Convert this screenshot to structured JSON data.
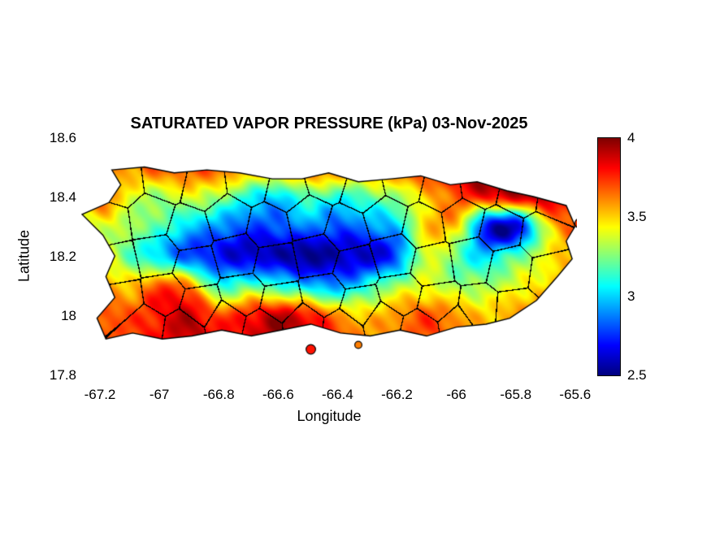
{
  "colors": {
    "background": "#ffffff",
    "text": "#000000",
    "boundary_lines": "#000000"
  },
  "chart_data": {
    "type": "heatmap",
    "title": "SATURATED VAPOR PRESSURE (kPa) 03-Nov-2025",
    "date": "03-Nov-2025",
    "units": "kPa",
    "xlabel": "Longitude",
    "ylabel": "Latitude",
    "xlim": [
      -67.263,
      -65.594
    ],
    "ylim": [
      17.8,
      18.6
    ],
    "x_ticks": [
      -67.2,
      -67,
      -66.8,
      -66.6,
      -66.4,
      -66.2,
      -66,
      -65.8,
      -65.6
    ],
    "x_tick_labels": [
      "-67.2",
      "-67",
      "-66.8",
      "-66.6",
      "-66.4",
      "-66.2",
      "-66",
      "-65.8",
      "-65.6"
    ],
    "y_ticks": [
      18.6,
      18.4,
      18.2,
      18,
      17.8
    ],
    "y_tick_labels": [
      "18.6",
      "18.4",
      "18.2",
      "18",
      "17.8"
    ],
    "colorbar": {
      "position": "right",
      "colormap": "jet",
      "min": 2.5,
      "max": 4,
      "ticks": [
        4,
        3.5,
        3,
        2.5
      ],
      "tick_labels": [
        "4",
        "3.5",
        "3",
        "2.5"
      ]
    },
    "grid": {
      "comment": "Estimated saturated vapor pressure (kPa) on a lon/lat grid; rows north to south",
      "lon_start": -67.3,
      "lon_step": 0.1,
      "lon_count": 19,
      "lat_start": 18.6,
      "lat_step": -0.1,
      "lat_count": 9,
      "values": [
        [
          3.5,
          3.6,
          3.6,
          3.7,
          3.7,
          3.7,
          3.6,
          3.6,
          3.7,
          3.7,
          3.6,
          3.7,
          3.8,
          3.9,
          4.0,
          4.0,
          3.9,
          3.8,
          3.8
        ],
        [
          3.5,
          3.6,
          3.6,
          3.7,
          3.7,
          3.7,
          3.6,
          3.6,
          3.7,
          3.7,
          3.6,
          3.7,
          3.8,
          3.9,
          4.0,
          4.0,
          3.9,
          3.8,
          3.8
        ],
        [
          3.5,
          3.7,
          3.4,
          3.3,
          3.4,
          3.3,
          3.1,
          3.0,
          3.2,
          3.1,
          3.2,
          3.3,
          3.5,
          3.7,
          3.8,
          3.9,
          3.9,
          3.8,
          3.7
        ],
        [
          3.3,
          3.4,
          3.3,
          3.2,
          3.0,
          2.9,
          2.8,
          2.8,
          2.9,
          2.8,
          2.9,
          3.0,
          3.5,
          3.5,
          2.7,
          2.6,
          3.4,
          3.7,
          3.7
        ],
        [
          3.6,
          3.5,
          3.2,
          3.0,
          2.8,
          2.7,
          2.6,
          2.6,
          2.5,
          2.6,
          2.6,
          2.8,
          3.4,
          3.2,
          3.0,
          3.2,
          3.4,
          3.6,
          3.7
        ],
        [
          3.6,
          3.6,
          3.5,
          3.7,
          3.6,
          3.1,
          3.2,
          3.1,
          3.0,
          2.9,
          3.1,
          3.3,
          3.4,
          3.3,
          3.3,
          3.4,
          3.5,
          3.7,
          3.7
        ],
        [
          3.7,
          3.7,
          3.7,
          3.8,
          3.9,
          3.7,
          3.8,
          3.9,
          3.8,
          3.6,
          3.5,
          3.6,
          3.7,
          3.6,
          3.5,
          3.6,
          3.7,
          3.8,
          3.8
        ],
        [
          3.7,
          3.7,
          3.7,
          3.8,
          3.9,
          3.8,
          3.8,
          3.9,
          3.8,
          3.7,
          3.6,
          3.6,
          3.7,
          3.6,
          3.5,
          3.6,
          3.7,
          3.8,
          3.8
        ],
        [
          3.7,
          3.7,
          3.7,
          3.8,
          3.9,
          3.8,
          3.8,
          3.9,
          3.8,
          3.7,
          3.6,
          3.6,
          3.7,
          3.6,
          3.5,
          3.6,
          3.7,
          3.8,
          3.8
        ]
      ]
    },
    "island_outline": [
      [
        -67.16,
        18.49
      ],
      [
        -67.05,
        18.5
      ],
      [
        -66.95,
        18.48
      ],
      [
        -66.84,
        18.49
      ],
      [
        -66.73,
        18.48
      ],
      [
        -66.62,
        18.46
      ],
      [
        -66.52,
        18.46
      ],
      [
        -66.43,
        18.48
      ],
      [
        -66.33,
        18.45
      ],
      [
        -66.22,
        18.46
      ],
      [
        -66.12,
        18.47
      ],
      [
        -66.02,
        18.44
      ],
      [
        -65.93,
        18.45
      ],
      [
        -65.83,
        18.42
      ],
      [
        -65.74,
        18.4
      ],
      [
        -65.63,
        18.37
      ],
      [
        -65.6,
        18.3
      ],
      [
        -65.63,
        18.25
      ],
      [
        -65.61,
        18.19
      ],
      [
        -65.66,
        18.13
      ],
      [
        -65.73,
        18.05
      ],
      [
        -65.82,
        17.99
      ],
      [
        -65.9,
        17.97
      ],
      [
        -66.0,
        17.96
      ],
      [
        -66.1,
        17.93
      ],
      [
        -66.19,
        17.95
      ],
      [
        -66.29,
        17.93
      ],
      [
        -66.39,
        17.94
      ],
      [
        -66.49,
        17.97
      ],
      [
        -66.59,
        17.95
      ],
      [
        -66.69,
        17.93
      ],
      [
        -66.79,
        17.95
      ],
      [
        -66.89,
        17.93
      ],
      [
        -66.99,
        17.92
      ],
      [
        -67.09,
        17.94
      ],
      [
        -67.18,
        17.92
      ],
      [
        -67.21,
        17.99
      ],
      [
        -67.15,
        18.06
      ],
      [
        -67.18,
        18.13
      ],
      [
        -67.15,
        18.2
      ],
      [
        -67.19,
        18.27
      ],
      [
        -67.26,
        18.34
      ],
      [
        -67.17,
        18.38
      ],
      [
        -67.13,
        18.44
      ]
    ],
    "islets": [
      {
        "lonlat": [
          -66.49,
          17.885
        ],
        "r": 0.016
      },
      {
        "lonlat": [
          -66.33,
          17.9
        ],
        "r": 0.012
      },
      {
        "lonlat": [
          -65.585,
          18.31
        ],
        "r": 0.016
      }
    ],
    "region_seeds": [
      [
        -67.13,
        18.44
      ],
      [
        -66.98,
        18.46
      ],
      [
        -66.85,
        18.43
      ],
      [
        -66.7,
        18.45
      ],
      [
        -66.57,
        18.42
      ],
      [
        -66.44,
        18.46
      ],
      [
        -66.31,
        18.42
      ],
      [
        -66.18,
        18.45
      ],
      [
        -66.05,
        18.42
      ],
      [
        -65.92,
        18.44
      ],
      [
        -65.79,
        18.41
      ],
      [
        -65.66,
        18.39
      ],
      [
        -67.17,
        18.31
      ],
      [
        -67.03,
        18.33
      ],
      [
        -66.9,
        18.29
      ],
      [
        -66.77,
        18.33
      ],
      [
        -66.63,
        18.3
      ],
      [
        -66.5,
        18.33
      ],
      [
        -66.37,
        18.29
      ],
      [
        -66.24,
        18.33
      ],
      [
        -66.11,
        18.3
      ],
      [
        -65.98,
        18.32
      ],
      [
        -65.85,
        18.29
      ],
      [
        -65.71,
        18.27
      ],
      [
        -67.14,
        18.17
      ],
      [
        -67.01,
        18.2
      ],
      [
        -66.88,
        18.16
      ],
      [
        -66.74,
        18.2
      ],
      [
        -66.61,
        18.17
      ],
      [
        -66.47,
        18.2
      ],
      [
        -66.34,
        18.16
      ],
      [
        -66.21,
        18.2
      ],
      [
        -66.08,
        18.17
      ],
      [
        -65.95,
        18.19
      ],
      [
        -65.82,
        18.16
      ],
      [
        -65.68,
        18.14
      ],
      [
        -67.12,
        18.05
      ],
      [
        -66.99,
        18.07
      ],
      [
        -66.86,
        18.03
      ],
      [
        -66.72,
        18.07
      ],
      [
        -66.59,
        18.04
      ],
      [
        -66.45,
        18.07
      ],
      [
        -66.32,
        18.03
      ],
      [
        -66.19,
        18.07
      ],
      [
        -66.06,
        18.04
      ],
      [
        -65.93,
        18.02
      ],
      [
        -65.8,
        18.01
      ],
      [
        -67.05,
        17.97
      ],
      [
        -66.92,
        17.95
      ],
      [
        -66.78,
        17.98
      ],
      [
        -66.65,
        17.95
      ],
      [
        -66.52,
        17.97
      ],
      [
        -66.38,
        17.95
      ],
      [
        -66.25,
        17.98
      ],
      [
        -66.12,
        17.95
      ],
      [
        -66.0,
        17.97
      ]
    ]
  }
}
